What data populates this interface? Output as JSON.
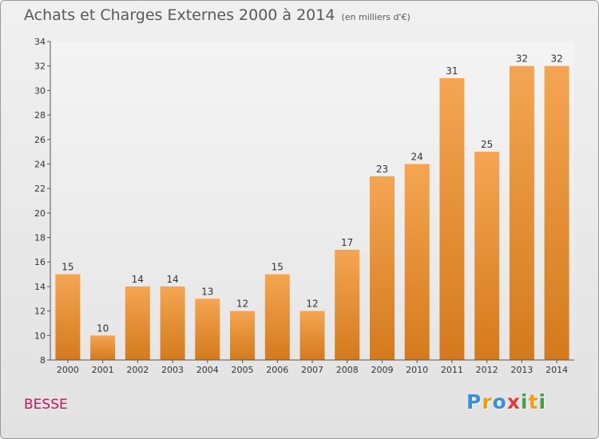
{
  "header": {
    "title": "Achats et Charges Externes 2000 à 2014",
    "unit": "(en milliers d'€)"
  },
  "commune": "BESSE",
  "logo": {
    "letters": [
      "P",
      "r",
      "o",
      "x",
      "i",
      "t",
      "i"
    ],
    "colors": [
      "#3b8fd4",
      "#f39c12",
      "#3b8fd4",
      "#e53935",
      "#43a047",
      "#f39c12",
      "#43a047"
    ]
  },
  "chart_data": {
    "type": "bar",
    "title": "Achats et Charges Externes 2000 à 2014",
    "xlabel": "",
    "ylabel": "",
    "categories": [
      "2000",
      "2001",
      "2002",
      "2003",
      "2004",
      "2005",
      "2006",
      "2007",
      "2008",
      "2009",
      "2010",
      "2011",
      "2012",
      "2013",
      "2014"
    ],
    "values": [
      15,
      10,
      14,
      14,
      13,
      12,
      15,
      12,
      17,
      23,
      24,
      31,
      25,
      32,
      32
    ],
    "ylim": [
      8,
      34
    ],
    "yticks": [
      8,
      10,
      12,
      14,
      16,
      18,
      20,
      22,
      24,
      26,
      28,
      30,
      32,
      34
    ],
    "grid": false,
    "bar_color_top": "#f5a552",
    "bar_color_bottom": "#d47a1c"
  }
}
